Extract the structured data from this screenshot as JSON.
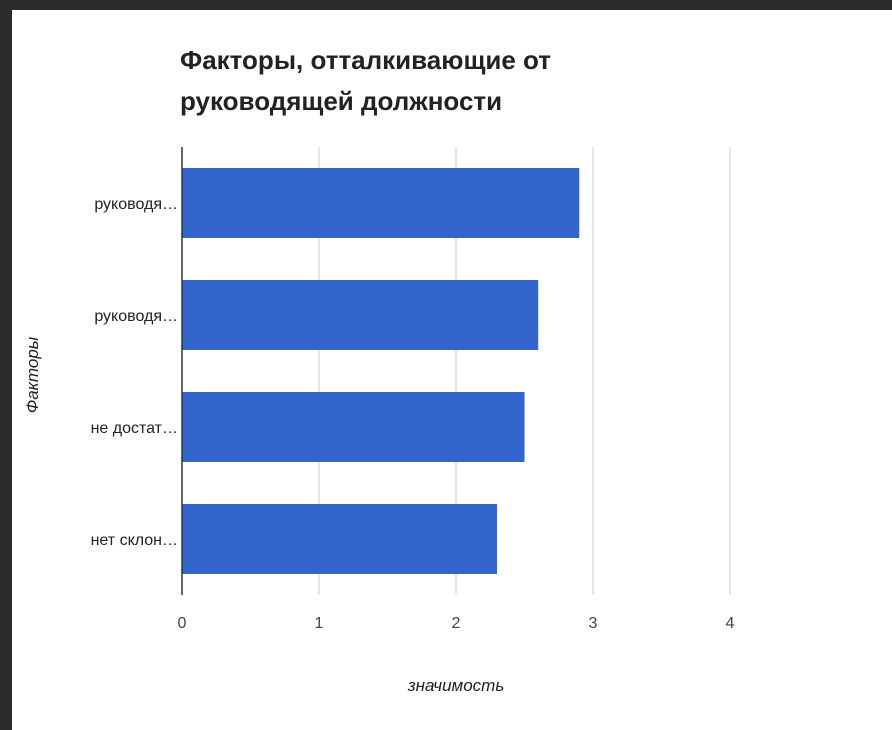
{
  "chart_data": {
    "type": "bar",
    "orientation": "horizontal",
    "title": "Факторы, отталкивающие от руководящей должности",
    "xlabel": "значимость",
    "ylabel": "Факторы",
    "categories": [
      "руководя…",
      "руководя…",
      "не достат…",
      "нет склон…"
    ],
    "values": [
      2.9,
      2.6,
      2.5,
      2.3
    ],
    "xlim": [
      0,
      4
    ],
    "xticks": [
      "0",
      "1",
      "2",
      "3",
      "4"
    ],
    "grid": true,
    "legend": "none",
    "bar_color": "#3366cc"
  }
}
